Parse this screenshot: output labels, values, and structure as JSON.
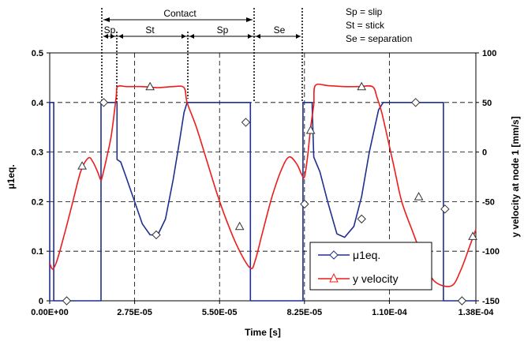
{
  "chart_data": {
    "type": "line",
    "xlabel": "Time [s]",
    "ylabel_left": "μ1eq.",
    "ylabel_right": "y velocity at node 1 [mm/s]",
    "xlim": [
      0,
      0.000138
    ],
    "ylim_left": [
      0,
      0.5
    ],
    "ylim_right": [
      -150,
      100
    ],
    "x_ticks": [
      0,
      2.75e-05,
      5.5e-05,
      8.25e-05,
      0.00011,
      0.000138
    ],
    "x_tick_labels": [
      "0.00E+00",
      "2.75E-05",
      "5.50E-05",
      "8.25E-05",
      "1.10E-04",
      "1.38E-04"
    ],
    "y_left_ticks": [
      0,
      0.1,
      0.2,
      0.3,
      0.4,
      0.5
    ],
    "y_left_tick_labels": [
      "0",
      "0.1",
      "0.2",
      "0.3",
      "0.4",
      "0.5"
    ],
    "y_right_ticks": [
      -150,
      -100,
      -50,
      0,
      50,
      100
    ],
    "y_right_tick_labels": [
      "-150",
      "-100",
      "-50",
      "0",
      "50",
      "100"
    ],
    "grid": true,
    "legend_position": "lower-right",
    "series": [
      {
        "name": "μ1eq.",
        "axis": "left",
        "color": "#1f2f8f",
        "marker": "diamond",
        "points": [
          [
            0,
            0
          ],
          [
            0,
            0.4
          ],
          [
            1.3e-06,
            0.4
          ],
          [
            1.3e-06,
            0
          ],
          [
            1.66e-05,
            0
          ],
          [
            1.66e-05,
            0.4
          ],
          [
            2.18e-05,
            0.4
          ],
          [
            2.18e-05,
            0.285
          ],
          [
            2.3e-05,
            0.28
          ],
          [
            2.5e-05,
            0.245
          ],
          [
            2.75e-05,
            0.2
          ],
          [
            3e-05,
            0.155
          ],
          [
            3.25e-05,
            0.133
          ],
          [
            3.5e-05,
            0.133
          ],
          [
            3.75e-05,
            0.165
          ],
          [
            4e-05,
            0.245
          ],
          [
            4.2e-05,
            0.32
          ],
          [
            4.35e-05,
            0.38
          ],
          [
            4.45e-05,
            0.4
          ],
          [
            6.5e-05,
            0.4
          ],
          [
            6.5e-05,
            0
          ],
          [
            8.2e-05,
            0
          ],
          [
            8.2e-05,
            0.4
          ],
          [
            8.5e-05,
            0.4
          ],
          [
            8.5e-05,
            0.39
          ],
          [
            8.55e-05,
            0.29
          ],
          [
            8.75e-05,
            0.26
          ],
          [
            9e-05,
            0.2
          ],
          [
            9.3e-05,
            0.135
          ],
          [
            9.55e-05,
            0.128
          ],
          [
            9.85e-05,
            0.15
          ],
          [
            0.000101,
            0.21
          ],
          [
            0.0001035,
            0.3
          ],
          [
            0.0001065,
            0.385
          ],
          [
            0.000108,
            0.4
          ],
          [
            0.0001275,
            0.4
          ],
          [
            0.0001275,
            0
          ],
          [
            0.000138,
            0
          ]
        ],
        "markers": [
          [
            5.5e-06,
            0
          ],
          [
            1.75e-05,
            0.4
          ],
          [
            3.45e-05,
            0.133
          ],
          [
            6.35e-05,
            0.36
          ],
          [
            8.25e-05,
            0.195
          ],
          [
            0.000101,
            0.165
          ],
          [
            0.0001185,
            0.4
          ],
          [
            0.000128,
            0.185
          ],
          [
            0.0001335,
            0
          ]
        ]
      },
      {
        "name": "y velocity",
        "axis": "right",
        "color": "#ee1c1c",
        "marker": "triangle",
        "points": [
          [
            0,
            -112
          ],
          [
            1e-06,
            -118
          ],
          [
            2.5e-06,
            -108
          ],
          [
            5e-06,
            -80
          ],
          [
            7.5e-06,
            -50
          ],
          [
            1e-05,
            -20
          ],
          [
            1.25e-05,
            -6
          ],
          [
            1.4e-05,
            -10
          ],
          [
            1.55e-05,
            -20
          ],
          [
            1.65e-05,
            -28
          ],
          [
            1.7e-05,
            -25
          ],
          [
            1.85e-05,
            -5
          ],
          [
            2e-05,
            18
          ],
          [
            2.15e-05,
            55
          ],
          [
            2.2e-05,
            66
          ],
          [
            2.5e-05,
            66
          ],
          [
            3e-05,
            66
          ],
          [
            3.5e-05,
            65
          ],
          [
            4e-05,
            66
          ],
          [
            4.35e-05,
            65
          ],
          [
            4.45e-05,
            50
          ],
          [
            4.75e-05,
            25
          ],
          [
            5.1e-05,
            -10
          ],
          [
            5.45e-05,
            -45
          ],
          [
            5.8e-05,
            -75
          ],
          [
            6.15e-05,
            -100
          ],
          [
            6.5e-05,
            -117
          ],
          [
            6.65e-05,
            -110
          ],
          [
            6.9e-05,
            -80
          ],
          [
            7.2e-05,
            -45
          ],
          [
            7.5e-05,
            -18
          ],
          [
            7.75e-05,
            -5
          ],
          [
            8e-05,
            -12
          ],
          [
            8.15e-05,
            -22
          ],
          [
            8.25e-05,
            -25
          ],
          [
            8.35e-05,
            -5
          ],
          [
            8.45e-05,
            25
          ],
          [
            8.55e-05,
            48
          ],
          [
            8.6e-05,
            67
          ],
          [
            9e-05,
            67
          ],
          [
            9.52e-05,
            66
          ],
          [
            0.0001,
            66
          ],
          [
            0.0001045,
            66
          ],
          [
            0.000106,
            55
          ],
          [
            0.0001075,
            40
          ],
          [
            0.000109,
            20
          ],
          [
            0.0001115,
            -15
          ],
          [
            0.000114,
            -50
          ],
          [
            0.0001175,
            -80
          ],
          [
            0.000121,
            -108
          ],
          [
            0.0001245,
            -130
          ],
          [
            0.00013,
            -135
          ],
          [
            0.000133,
            -120
          ],
          [
            0.000136,
            -95
          ],
          [
            0.000138,
            -78
          ]
        ],
        "markers": [
          [
            1.05e-05,
            -14
          ],
          [
            3.25e-05,
            66
          ],
          [
            6.15e-05,
            -75
          ],
          [
            8.45e-05,
            22
          ],
          [
            0.000101,
            66
          ],
          [
            0.0001195,
            -45
          ],
          [
            0.000137,
            -85
          ]
        ]
      }
    ],
    "phase_labels": {
      "contact": "Contact",
      "sp1": "Sp",
      "st": "St",
      "sp2": "Sp",
      "se": "Se"
    },
    "key": [
      "Sp = slip",
      "St = stick",
      "Se = separation"
    ]
  }
}
